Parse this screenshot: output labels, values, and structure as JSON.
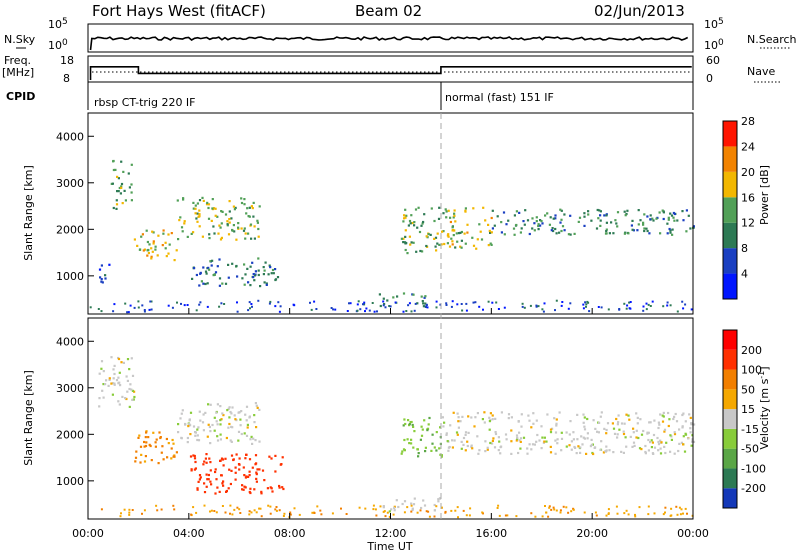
{
  "header": {
    "station": "Fort Hays West (fitACF)",
    "beam": "Beam 02",
    "date": "02/Jun/2013"
  },
  "params": {
    "nsky_label": "N.Sky",
    "nsearch_label": "N.Search",
    "noise_ticks": [
      "10^5",
      "10^0"
    ],
    "noise_right_ticks": [
      "10^5",
      "10^0"
    ],
    "freq_label": "Freq.",
    "freq_unit": "[MHz]",
    "freq_ticks": [
      "18",
      "8"
    ],
    "nave_label": "Nave",
    "nave_ticks": [
      "60",
      "0"
    ],
    "cpid_label": "CPID",
    "modes": [
      {
        "label": "rbsp CT-trig 220 IF",
        "start_h": 0,
        "end_h": 14
      },
      {
        "label": "normal (fast) 151 IF",
        "start_h": 14,
        "end_h": 24
      }
    ],
    "freq_steps": [
      {
        "start_h": 0,
        "end_h": 2,
        "value": 14
      },
      {
        "start_h": 2,
        "end_h": 14,
        "value": 11
      },
      {
        "start_h": 14,
        "end_h": 24,
        "value": 14
      }
    ]
  },
  "chart_data": [
    {
      "type": "heatmap",
      "name": "power",
      "xlabel": "Time UT",
      "ylabel": "Slant Range [km]",
      "x_ticks": [
        "00:00",
        "04:00",
        "08:00",
        "12:00",
        "16:00",
        "20:00",
        "00:00"
      ],
      "y_ticks": [
        "1000",
        "2000",
        "3000",
        "4000"
      ],
      "xlim_hours": [
        0,
        24
      ],
      "ylim_km": [
        180,
        4500
      ],
      "colorbar": {
        "label": "Power [dB]",
        "ticks": [
          "4",
          "8",
          "12",
          "16",
          "20",
          "24",
          "28"
        ],
        "range": [
          0,
          30
        ],
        "colors": [
          "#0016ff",
          "#1a3fc1",
          "#2d7a54",
          "#51a057",
          "#f2b700",
          "#f28300",
          "#ff1500"
        ]
      },
      "features": [
        {
          "t": [
            0.9,
            1.7
          ],
          "r": [
            2450,
            3500
          ],
          "level": 14
        },
        {
          "t": [
            1.8,
            3.5
          ],
          "r": [
            1350,
            2000
          ],
          "level": 19
        },
        {
          "t": [
            3.5,
            6.8
          ],
          "r": [
            1800,
            2700
          ],
          "level": 16
        },
        {
          "t": [
            4.0,
            7.5
          ],
          "r": [
            800,
            1400
          ],
          "level": 10
        },
        {
          "t": [
            0.4,
            0.9
          ],
          "r": [
            800,
            1300
          ],
          "level": 6
        },
        {
          "t": [
            12.4,
            14.0
          ],
          "r": [
            1500,
            2500
          ],
          "level": 15
        },
        {
          "t": [
            14.0,
            16.0
          ],
          "r": [
            1600,
            2500
          ],
          "level": 17
        },
        {
          "t": [
            16.0,
            24.0
          ],
          "r": [
            1900,
            2450
          ],
          "level": 11
        },
        {
          "t": [
            11.5,
            13.5
          ],
          "r": [
            350,
            650
          ],
          "level": 12
        }
      ]
    },
    {
      "type": "heatmap",
      "name": "velocity",
      "xlabel": "Time UT",
      "ylabel": "Slant Range [km]",
      "x_ticks": [
        "00:00",
        "04:00",
        "08:00",
        "12:00",
        "16:00",
        "20:00",
        "00:00"
      ],
      "y_ticks": [
        "1000",
        "2000",
        "3000",
        "4000"
      ],
      "xlim_hours": [
        0,
        24
      ],
      "ylim_km": [
        180,
        4500
      ],
      "colorbar": {
        "label": "Velocity [m s^-1]",
        "ticks": [
          "200",
          "100",
          "50",
          "15",
          "-15",
          "-50",
          "-100",
          "-200"
        ],
        "range": [
          -250,
          250
        ],
        "colors": [
          "#1438b8",
          "#2d7a54",
          "#5aa646",
          "#88cc3a",
          "#c8c8c8",
          "#f5a800",
          "#f27f00",
          "#ff3000",
          "#ff0000"
        ]
      },
      "features": [
        {
          "t": [
            0.4,
            1.8
          ],
          "r": [
            2600,
            3700
          ],
          "v": 0
        },
        {
          "t": [
            1.8,
            3.5
          ],
          "r": [
            1400,
            2100
          ],
          "v": -60
        },
        {
          "t": [
            3.5,
            6.8
          ],
          "r": [
            1800,
            2700
          ],
          "v": 0
        },
        {
          "t": [
            4.0,
            7.8
          ],
          "r": [
            750,
            1600
          ],
          "v": -150
        },
        {
          "t": [
            12.4,
            14.0
          ],
          "r": [
            1500,
            2400
          ],
          "v": 40
        },
        {
          "t": [
            14.0,
            24.0
          ],
          "r": [
            1600,
            2500
          ],
          "v": 0
        },
        {
          "t": [
            11.5,
            14.0
          ],
          "r": [
            350,
            650
          ],
          "v": 0
        }
      ]
    }
  ]
}
